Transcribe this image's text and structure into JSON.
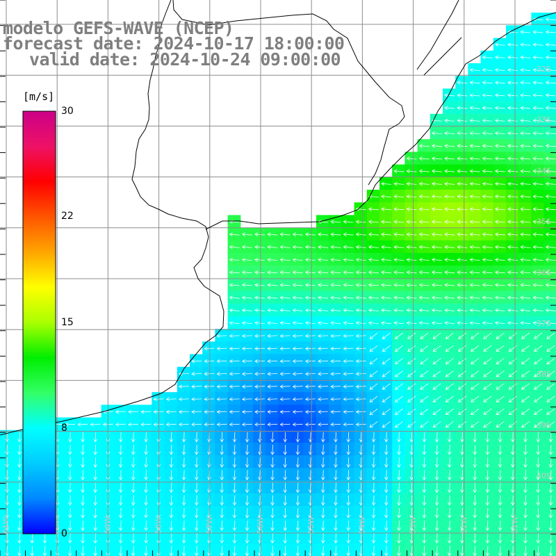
{
  "title": {
    "line1": "modelo GEFS-WAVE (NCEP)",
    "line2": "forecast date: 2024-10-17 18:00:00",
    "line3": "valid date: 2024-10-24 09:00:00"
  },
  "colorbar": {
    "unit": "[m/s]",
    "ticks": [
      "30",
      "22",
      "15",
      "8",
      "0"
    ],
    "min": 0,
    "max": 30,
    "colors": [
      "#0000ff",
      "#0088ff",
      "#00ccff",
      "#00ffff",
      "#33ff66",
      "#00ee00",
      "#aaff00",
      "#ffff00",
      "#ffa500",
      "#ff5500",
      "#ff0000",
      "#ee1166",
      "#cc0088"
    ]
  },
  "map": {
    "variable": "wind speed (m/s)",
    "extent": {
      "lon": [
        -61.5,
        -50.5
      ],
      "lat": [
        -30.5,
        -41.5
      ]
    },
    "lat_labels": [
      "32S",
      "33S",
      "34S",
      "35S",
      "36S",
      "37S",
      "38S",
      "39S",
      "40S"
    ],
    "lon_labels": [
      "61W",
      "60W",
      "59W",
      "58W",
      "57W",
      "56W",
      "55W",
      "54W",
      "53W",
      "52W",
      "51W"
    ],
    "land_color": "#ffffff",
    "grid_color": "#8c8c8c",
    "arrow_color": "#ffffff",
    "coast_color": "#000000"
  }
}
